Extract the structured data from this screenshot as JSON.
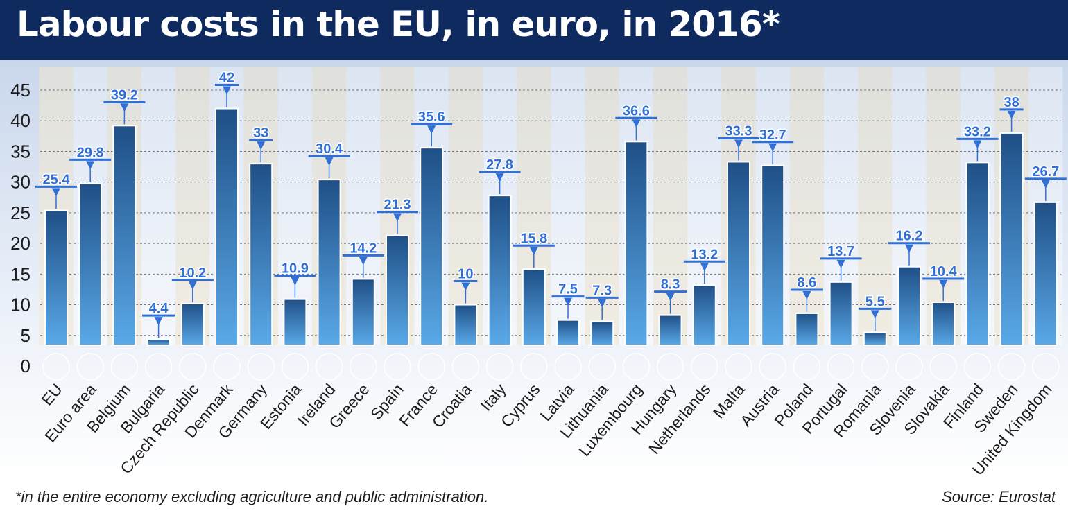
{
  "header": {
    "title": "Labour costs in the EU, in euro, in 2016*"
  },
  "footer": {
    "note": "*in the entire economy excluding agriculture and public administration.",
    "source": "Source: Eurostat"
  },
  "colors": {
    "header_bg": "#0e2a5e",
    "bar_top": "#1f4f86",
    "bar_bottom": "#5aa9e8",
    "label_box": "#2f6fd6",
    "label_text": "#2f6fd6"
  },
  "chart_data": {
    "type": "bar",
    "ylim": [
      0,
      45
    ],
    "yticks": [
      0,
      5,
      10,
      15,
      20,
      25,
      30,
      35,
      40,
      45
    ],
    "grid": true,
    "categories": [
      "EU",
      "Euro area",
      "Belgium",
      "Bulgaria",
      "Czech Republic",
      "Denmark",
      "Germany",
      "Estonia",
      "Ireland",
      "Greece",
      "Spain",
      "France",
      "Croatia",
      "Italy",
      "Cyprus",
      "Latvia",
      "Lithuania",
      "Luxembourg",
      "Hungary",
      "Netherlands",
      "Malta",
      "Austria",
      "Poland",
      "Portugal",
      "Romania",
      "Slovenia",
      "Slovakia",
      "Finland",
      "Sweden",
      "United Kingdom"
    ],
    "values": [
      25.4,
      29.8,
      39.2,
      4.4,
      10.2,
      42,
      33,
      10.9,
      30.4,
      14.2,
      21.3,
      35.6,
      10,
      27.8,
      15.8,
      7.5,
      7.3,
      36.6,
      8.3,
      13.2,
      33.3,
      32.7,
      8.6,
      13.7,
      5.5,
      16.2,
      10.4,
      33.2,
      38,
      26.7
    ],
    "flags": [
      "eu-flag",
      "euro-flag",
      "belgium-flag",
      "bulgaria-flag",
      "czech-flag",
      "denmark-flag",
      "germany-flag",
      "estonia-flag",
      "ireland-flag",
      "greece-flag",
      "spain-flag",
      "france-flag",
      "croatia-flag",
      "italy-flag",
      "cyprus-flag",
      "latvia-flag",
      "lithuania-flag",
      "luxembourg-flag",
      "hungary-flag",
      "netherlands-flag",
      "malta-flag",
      "austria-flag",
      "poland-flag",
      "portugal-flag",
      "romania-flag",
      "slovenia-flag",
      "slovakia-flag",
      "finland-flag",
      "sweden-flag",
      "uk-flag"
    ]
  }
}
